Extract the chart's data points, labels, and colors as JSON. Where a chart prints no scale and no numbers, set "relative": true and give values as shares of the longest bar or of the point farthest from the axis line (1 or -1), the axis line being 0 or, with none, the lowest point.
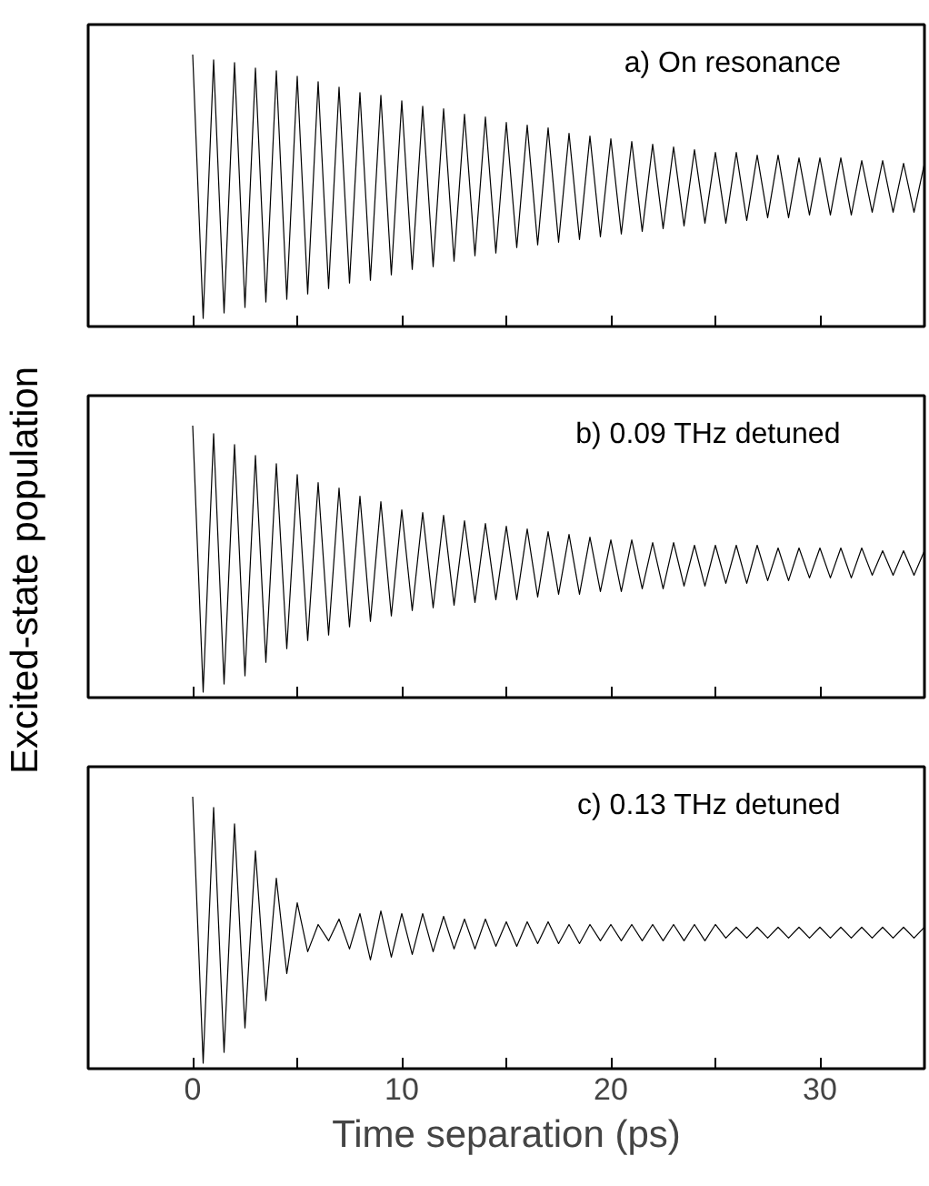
{
  "chart_data": [
    {
      "type": "line",
      "title": "a) On resonance",
      "relative": true,
      "tick_labels": false,
      "xlim": [
        -5,
        35
      ],
      "xticks": [
        0,
        {
          "value": 5,
          "label": null
        },
        10,
        {
          "value": 15,
          "label": null
        },
        20,
        {
          "value": 25,
          "label": null
        },
        30
      ],
      "x": [
        0,
        0.5,
        1,
        1.5,
        2,
        2.5,
        3,
        3.5,
        4,
        4.5,
        5,
        5.5,
        6,
        6.5,
        7,
        7.5,
        8,
        8.5,
        9,
        9.5,
        10,
        10.5,
        11,
        11.5,
        12,
        12.5,
        13,
        13.5,
        14,
        14.5,
        15,
        15.5,
        16,
        16.5,
        17,
        17.5,
        18,
        18.5,
        19,
        19.5,
        20,
        20.5,
        21,
        21.5,
        22,
        22.5,
        23,
        23.5,
        24,
        24.5,
        25,
        25.5,
        26,
        26.5,
        27,
        27.5,
        28,
        28.5,
        29,
        29.5,
        30,
        30.5,
        31,
        31.5,
        32,
        32.5,
        33,
        33.5,
        34,
        34.5,
        35
      ],
      "series": [
        {
          "color": "#000000",
          "values": [
            1.0,
            0.03,
            0.98,
            0.05,
            0.97,
            0.07,
            0.95,
            0.09,
            0.94,
            0.1,
            0.92,
            0.12,
            0.9,
            0.14,
            0.88,
            0.16,
            0.86,
            0.17,
            0.85,
            0.19,
            0.83,
            0.21,
            0.81,
            0.22,
            0.8,
            0.24,
            0.78,
            0.26,
            0.77,
            0.27,
            0.75,
            0.29,
            0.74,
            0.3,
            0.73,
            0.31,
            0.71,
            0.32,
            0.7,
            0.33,
            0.69,
            0.34,
            0.68,
            0.35,
            0.67,
            0.36,
            0.66,
            0.37,
            0.65,
            0.38,
            0.64,
            0.38,
            0.64,
            0.39,
            0.63,
            0.4,
            0.63,
            0.4,
            0.62,
            0.41,
            0.62,
            0.41,
            0.62,
            0.41,
            0.61,
            0.42,
            0.61,
            0.42,
            0.6,
            0.42,
            0.6
          ]
        }
      ]
    },
    {
      "type": "line",
      "title": "b) 0.09 THz detuned",
      "ylabel": "Excited-state population",
      "relative": true,
      "tick_labels": false,
      "xlim": [
        -5,
        35
      ],
      "xticks": [
        0,
        {
          "value": 5,
          "label": null
        },
        10,
        {
          "value": 15,
          "label": null
        },
        20,
        {
          "value": 25,
          "label": null
        },
        30
      ],
      "x": [
        0,
        0.5,
        1,
        1.5,
        2,
        2.5,
        3,
        3.5,
        4,
        4.5,
        5,
        5.5,
        6,
        6.5,
        7,
        7.5,
        8,
        8.5,
        9,
        9.5,
        10,
        10.5,
        11,
        11.5,
        12,
        12.5,
        13,
        13.5,
        14,
        14.5,
        15,
        15.5,
        16,
        16.5,
        17,
        17.5,
        18,
        18.5,
        19,
        19.5,
        20,
        20.5,
        21,
        21.5,
        22,
        22.5,
        23,
        23.5,
        24,
        24.5,
        25,
        25.5,
        26,
        26.5,
        27,
        27.5,
        28,
        28.5,
        29,
        29.5,
        30,
        30.5,
        31,
        31.5,
        32,
        32.5,
        33,
        33.5,
        34,
        34.5,
        35
      ],
      "series": [
        {
          "color": "#000000",
          "values": [
            1.0,
            0.02,
            0.97,
            0.05,
            0.93,
            0.08,
            0.89,
            0.13,
            0.86,
            0.18,
            0.82,
            0.21,
            0.79,
            0.23,
            0.77,
            0.26,
            0.74,
            0.28,
            0.72,
            0.3,
            0.69,
            0.32,
            0.68,
            0.33,
            0.67,
            0.34,
            0.65,
            0.35,
            0.64,
            0.36,
            0.63,
            0.36,
            0.62,
            0.37,
            0.61,
            0.38,
            0.6,
            0.38,
            0.59,
            0.39,
            0.58,
            0.39,
            0.58,
            0.4,
            0.57,
            0.4,
            0.57,
            0.41,
            0.56,
            0.41,
            0.56,
            0.42,
            0.56,
            0.42,
            0.56,
            0.43,
            0.55,
            0.43,
            0.55,
            0.44,
            0.55,
            0.44,
            0.55,
            0.44,
            0.55,
            0.45,
            0.54,
            0.45,
            0.54,
            0.45,
            0.54
          ]
        }
      ]
    },
    {
      "type": "line",
      "title": "c) 0.13 THz detuned",
      "xlabel": "Time separation (ps)",
      "relative": true,
      "tick_labels": "x",
      "xlim": [
        -5,
        35
      ],
      "xticks": [
        0,
        {
          "value": 5,
          "label": null
        },
        10,
        {
          "value": 15,
          "label": null
        },
        20,
        {
          "value": 25,
          "label": null
        },
        30
      ],
      "x": [
        0,
        0.5,
        1,
        1.5,
        2,
        2.5,
        3,
        3.5,
        4,
        4.5,
        5,
        5.5,
        6,
        6.5,
        7,
        7.5,
        8,
        8.5,
        9,
        9.5,
        10,
        10.5,
        11,
        11.5,
        12,
        12.5,
        13,
        13.5,
        14,
        14.5,
        15,
        15.5,
        16,
        16.5,
        17,
        17.5,
        18,
        18.5,
        19,
        19.5,
        20,
        20.5,
        21,
        21.5,
        22,
        22.5,
        23,
        23.5,
        24,
        24.5,
        25,
        25.5,
        26,
        26.5,
        27,
        27.5,
        28,
        28.5,
        29,
        29.5,
        30,
        30.5,
        31,
        31.5,
        32,
        32.5,
        33,
        33.5,
        34,
        34.5,
        35
      ],
      "series": [
        {
          "color": "#000000",
          "values": [
            1.0,
            0.02,
            0.96,
            0.06,
            0.9,
            0.15,
            0.8,
            0.25,
            0.7,
            0.35,
            0.61,
            0.43,
            0.53,
            0.47,
            0.55,
            0.44,
            0.57,
            0.4,
            0.58,
            0.41,
            0.57,
            0.42,
            0.57,
            0.43,
            0.56,
            0.44,
            0.55,
            0.44,
            0.55,
            0.45,
            0.54,
            0.45,
            0.54,
            0.46,
            0.54,
            0.46,
            0.53,
            0.46,
            0.53,
            0.47,
            0.53,
            0.47,
            0.53,
            0.47,
            0.53,
            0.47,
            0.53,
            0.47,
            0.53,
            0.47,
            0.53,
            0.48,
            0.52,
            0.48,
            0.52,
            0.48,
            0.52,
            0.48,
            0.52,
            0.48,
            0.52,
            0.48,
            0.52,
            0.48,
            0.52,
            0.48,
            0.52,
            0.48,
            0.52,
            0.48,
            0.52
          ]
        }
      ]
    }
  ]
}
